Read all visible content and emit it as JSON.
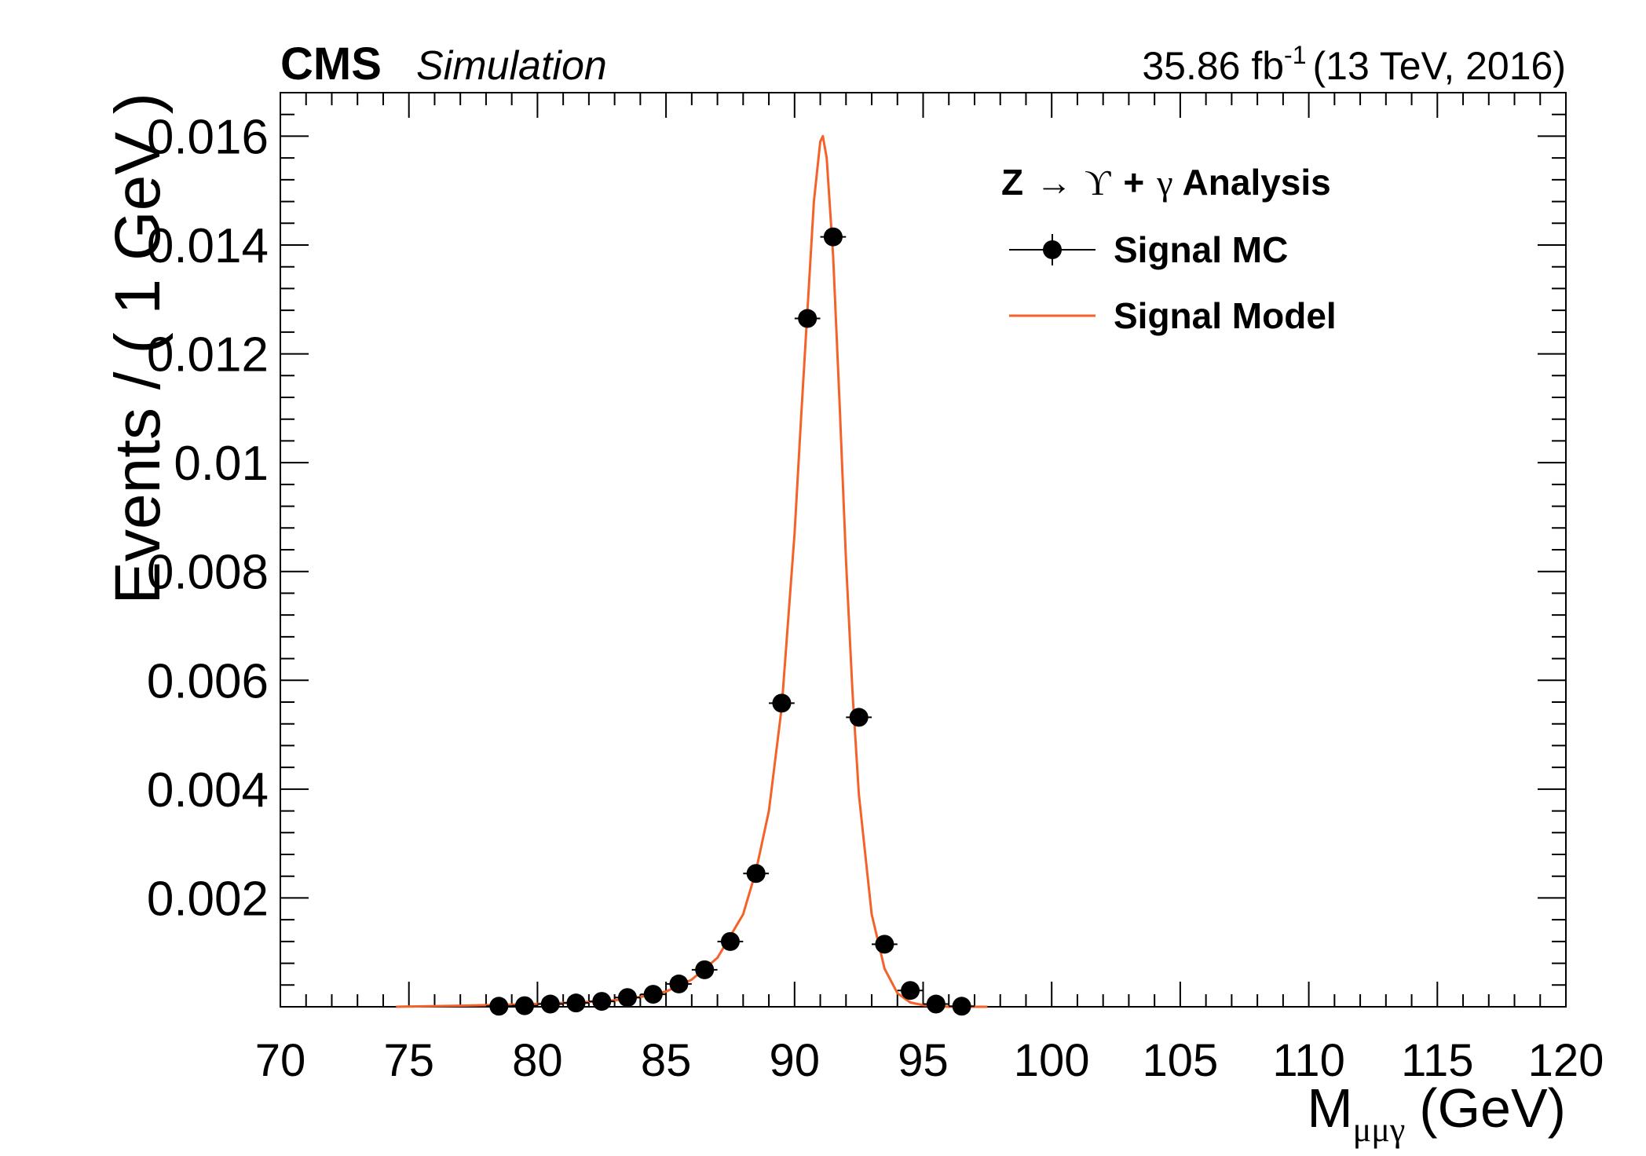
{
  "header": {
    "experiment": "CMS",
    "status": "Simulation",
    "lumi_value": "35.86 fb",
    "lumi_exponent": "-1",
    "energy_year": "(13 TeV, 2016)"
  },
  "legend": {
    "title_parts": [
      "Z",
      "→",
      "ϒ",
      "+",
      "γ",
      "Analysis"
    ],
    "entries": [
      {
        "label": "Signal MC",
        "style": "marker"
      },
      {
        "label": "Signal Model",
        "style": "line"
      }
    ]
  },
  "colors": {
    "model_line": "#f4622a",
    "markers": "#000000",
    "frame": "#000000"
  },
  "chart_data": {
    "type": "scatter",
    "xlabel_main": "M",
    "xlabel_sub": "μμγ",
    "xlabel_unit": "(GeV)",
    "ylabel": "Events / ( 1 GeV )",
    "xlim": [
      70,
      120
    ],
    "ylim": [
      0,
      0.0168
    ],
    "x_ticks": [
      70,
      75,
      80,
      85,
      90,
      95,
      100,
      105,
      110,
      115,
      120
    ],
    "x_tick_labels": [
      "70",
      "75",
      "80",
      "85",
      "90",
      "95",
      "100",
      "105",
      "110",
      "115",
      "120"
    ],
    "y_ticks": [
      0.002,
      0.004,
      0.006,
      0.008,
      0.01,
      0.012,
      0.014,
      0.016
    ],
    "y_tick_labels": [
      "0.002",
      "0.004",
      "0.006",
      "0.008",
      "0.01",
      "0.012",
      "0.014",
      "0.016"
    ],
    "grid": false,
    "legend_position": "top-right",
    "series": [
      {
        "name": "Signal MC",
        "type": "points",
        "x": [
          78.5,
          79.5,
          80.5,
          81.5,
          82.5,
          83.5,
          84.5,
          85.5,
          86.5,
          87.5,
          88.5,
          89.5,
          90.5,
          91.5,
          92.5,
          93.5,
          94.5,
          95.5,
          96.5
        ],
        "y": [
          1e-05,
          2e-05,
          5e-05,
          7e-05,
          0.0001,
          0.00017,
          0.00023,
          0.00042,
          0.00068,
          0.0012,
          0.00245,
          0.00558,
          0.01265,
          0.01415,
          0.00532,
          0.00115,
          0.0003,
          5e-05,
          1e-05
        ],
        "x_err": 0.5
      },
      {
        "name": "Signal Model",
        "type": "line",
        "x": [
          74.5,
          77,
          79,
          80.5,
          82,
          83,
          84,
          85,
          86,
          87,
          88,
          88.5,
          89,
          89.5,
          90,
          90.25,
          90.5,
          90.75,
          91,
          91.1,
          91.25,
          91.5,
          91.75,
          92,
          92.25,
          92.5,
          93,
          93.5,
          94,
          94.5,
          95,
          96,
          97.5
        ],
        "y": [
          0.0,
          2e-05,
          4e-05,
          6e-05,
          9e-05,
          0.00012,
          0.00018,
          0.00028,
          0.0005,
          0.0009,
          0.0017,
          0.0025,
          0.0036,
          0.0055,
          0.0087,
          0.0108,
          0.0128,
          0.0148,
          0.0159,
          0.016,
          0.0156,
          0.0138,
          0.0111,
          0.0082,
          0.0058,
          0.0039,
          0.0017,
          0.0007,
          0.00025,
          8e-05,
          3e-05,
          0.0,
          0.0
        ]
      }
    ]
  }
}
